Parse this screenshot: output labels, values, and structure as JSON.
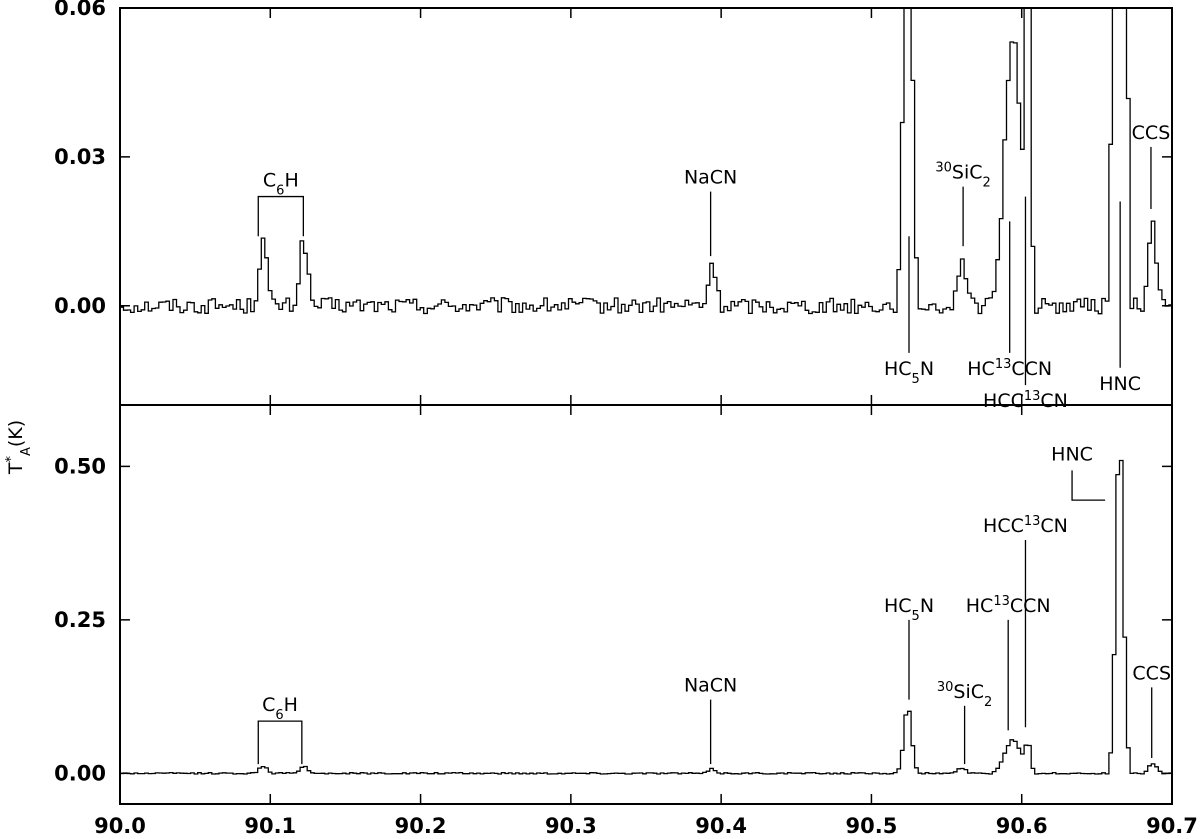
{
  "chart_data": {
    "type": "line",
    "style": "step",
    "line_color": "#000000",
    "x": {
      "range": [
        90.0,
        90.7
      ],
      "ticks": [
        90.0,
        90.1,
        90.2,
        90.3,
        90.4,
        90.5,
        90.6,
        90.7
      ],
      "tick_labels": [
        "90.0",
        "90.1",
        "90.2",
        "90.3",
        "90.4",
        "90.5",
        "90.6",
        "90.7"
      ]
    },
    "ylabel": {
      "main": "T",
      "sup": "*",
      "sub": "A",
      "unit": "(K)"
    },
    "panels": [
      {
        "id": "top",
        "ylim": [
          -0.02,
          0.06
        ],
        "yticks": [
          0.0,
          0.03,
          0.06
        ],
        "ytick_labels": [
          "0.00",
          "0.03",
          "0.06"
        ],
        "channel_width": 0.00235,
        "noise": 0.0016,
        "features": [
          {
            "center": 90.094,
            "peak": 0.0135,
            "width": 0.0045
          },
          {
            "center": 90.121,
            "peak": 0.0135,
            "width": 0.0045
          },
          {
            "center": 90.393,
            "peak": 0.009,
            "width": 0.004
          },
          {
            "center": 90.523,
            "peak": 0.11,
            "width": 0.0045
          },
          {
            "center": 90.559,
            "peak": 0.01,
            "width": 0.0045
          },
          {
            "center": 90.593,
            "peak": 0.055,
            "width": 0.0095
          },
          {
            "center": 90.603,
            "peak": 0.065,
            "width": 0.003
          },
          {
            "center": 90.664,
            "peak": 0.55,
            "width": 0.0045
          },
          {
            "center": 90.686,
            "peak": 0.017,
            "width": 0.0045
          }
        ],
        "labels": [
          {
            "text": "C",
            "sub": "6",
            "after": "H",
            "type": "bracket",
            "x1": 90.092,
            "x2": 90.122,
            "tip": 0.014,
            "bar": 0.022
          },
          {
            "text": "NaCN",
            "type": "above",
            "x": 90.393,
            "tip": 0.01,
            "top": 0.023
          },
          {
            "text": "HC",
            "sub": "5",
            "after": "N",
            "type": "below",
            "x": 90.525,
            "tip": 0.014,
            "bottom": -0.0095
          },
          {
            "sup": "30",
            "text": "SiC",
            "sub": "2",
            "type": "above",
            "x": 90.561,
            "tip": 0.012,
            "top": 0.024
          },
          {
            "text": "HC",
            "sup": "13",
            "after": "CCN",
            "type": "below",
            "x": 90.592,
            "tip": 0.017,
            "bottom": -0.0095
          },
          {
            "text": "HCC",
            "sup": "13",
            "after": "CN",
            "type": "below",
            "x": 90.6025,
            "tip": 0.022,
            "bottom": -0.016
          },
          {
            "text": "HNC",
            "type": "below",
            "x": 90.6655,
            "tip": 0.021,
            "bottom": -0.0125
          },
          {
            "text": "CCS",
            "type": "above",
            "x": 90.686,
            "tip": 0.0195,
            "top": 0.032
          }
        ]
      },
      {
        "id": "bottom",
        "ylim": [
          -0.05,
          0.6
        ],
        "yticks": [
          0.0,
          0.25,
          0.5
        ],
        "ytick_labels": [
          "0.00",
          "0.25",
          "0.50"
        ],
        "channel_width": 0.00235,
        "noise": 0.0012,
        "features": [
          {
            "center": 90.094,
            "peak": 0.012,
            "width": 0.0045
          },
          {
            "center": 90.121,
            "peak": 0.012,
            "width": 0.0045
          },
          {
            "center": 90.393,
            "peak": 0.007,
            "width": 0.004
          },
          {
            "center": 90.523,
            "peak": 0.11,
            "width": 0.0045
          },
          {
            "center": 90.559,
            "peak": 0.009,
            "width": 0.0045
          },
          {
            "center": 90.593,
            "peak": 0.055,
            "width": 0.0095
          },
          {
            "center": 90.603,
            "peak": 0.045,
            "width": 0.003
          },
          {
            "center": 90.664,
            "peak": 0.555,
            "width": 0.0045
          },
          {
            "center": 90.686,
            "peak": 0.016,
            "width": 0.0045
          }
        ],
        "labels": [
          {
            "text": "C",
            "sub": "6",
            "after": "H",
            "type": "bracket",
            "x1": 90.092,
            "x2": 90.121,
            "tip": 0.015,
            "bar": 0.085
          },
          {
            "text": "NaCN",
            "type": "above",
            "x": 90.393,
            "tip": 0.015,
            "top": 0.12
          },
          {
            "text": "HC",
            "sub": "5",
            "after": "N",
            "type": "above",
            "x": 90.525,
            "tip": 0.12,
            "top": 0.25
          },
          {
            "sup": "30",
            "text": "SiC",
            "sub": "2",
            "type": "above",
            "x": 90.562,
            "tip": 0.015,
            "top": 0.11
          },
          {
            "text": "HC",
            "sup": "13",
            "after": "CCN",
            "type": "above",
            "x": 90.591,
            "tip": 0.07,
            "top": 0.25
          },
          {
            "text": "HCC",
            "sup": "13",
            "after": "CN",
            "type": "above",
            "x": 90.6025,
            "tip": 0.075,
            "top": 0.38
          },
          {
            "text": "HNC",
            "type": "elbow",
            "x": 90.6555,
            "x_text": 90.6335,
            "y": 0.445,
            "top": 0.5
          },
          {
            "text": "CCS",
            "type": "above",
            "x": 90.6865,
            "tip": 0.025,
            "top": 0.14
          }
        ]
      }
    ]
  }
}
